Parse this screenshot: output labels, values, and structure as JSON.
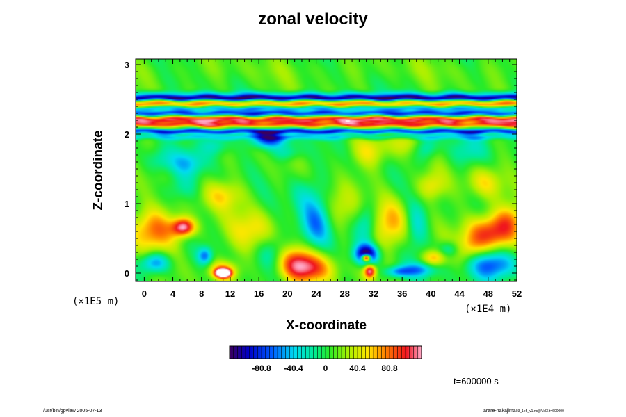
{
  "chart_data": {
    "type": "heatmap",
    "title": "zonal velocity",
    "xlabel": "X-coordinate",
    "ylabel": "Z-coordinate",
    "x_unit_label": "(×1E4 m)",
    "y_unit_label": "(×1E5 m)",
    "xlim": [
      -1.2,
      52
    ],
    "ylim": [
      -0.12,
      3.08
    ],
    "x_ticks": [
      0,
      4,
      8,
      12,
      16,
      20,
      24,
      28,
      32,
      36,
      40,
      44,
      48,
      52
    ],
    "x_tick_labels": [
      "0",
      "4",
      "8",
      "12",
      "16",
      "20",
      "24",
      "28",
      "32",
      "36",
      "40",
      "44",
      "48",
      "52"
    ],
    "y_ticks": [
      0,
      1,
      2,
      3
    ],
    "y_tick_labels": [
      "0",
      "1",
      "2",
      "3"
    ],
    "colorbar": {
      "range": [
        -121.2,
        121.2
      ],
      "tick_values": [
        -80.8,
        -40.4,
        0,
        40.4,
        80.8
      ],
      "tick_labels": [
        "-80.8",
        "-40.4",
        "0",
        "40.4",
        "80.8"
      ]
    },
    "time_label": "t=600000 s",
    "bands": [
      {
        "z": 2.92,
        "value": 5,
        "width": 0.16
      },
      {
        "z": 2.57,
        "value": -35,
        "width": 0.05
      },
      {
        "z": 2.52,
        "value": -110,
        "width": 0.04
      },
      {
        "z": 2.44,
        "value": 60,
        "width": 0.05
      },
      {
        "z": 2.37,
        "value": -55,
        "width": 0.035
      },
      {
        "z": 2.3,
        "value": -85,
        "width": 0.04
      },
      {
        "z": 2.21,
        "value": 95,
        "width": 0.045
      },
      {
        "z": 2.14,
        "value": 80,
        "width": 0.04
      },
      {
        "z": 2.04,
        "value": -90,
        "width": 0.035
      },
      {
        "z": 1.96,
        "value": -40,
        "width": 0.04
      }
    ],
    "features": [
      {
        "x": 11,
        "z": 0.0,
        "value": 180,
        "rx": 1.0,
        "rz": 0.06
      },
      {
        "x": 11,
        "z": 0.04,
        "value": 60,
        "rx": 2.0,
        "rz": 0.13
      },
      {
        "x": 8.5,
        "z": 0.25,
        "value": -65,
        "rx": 1.0,
        "rz": 0.12
      },
      {
        "x": 22.5,
        "z": 0.06,
        "value": 95,
        "rx": 3.5,
        "rz": 0.22
      },
      {
        "x": 21,
        "z": 0.22,
        "value": 40,
        "rx": 2.5,
        "rz": 0.2
      },
      {
        "x": 31,
        "z": 0.22,
        "value": 200,
        "rx": 0.6,
        "rz": 0.05
      },
      {
        "x": 31,
        "z": 0.27,
        "value": -130,
        "rx": 1.6,
        "rz": 0.14
      },
      {
        "x": 31.5,
        "z": 0.03,
        "value": 110,
        "rx": 0.8,
        "rz": 0.1
      },
      {
        "x": 35.5,
        "z": 0.02,
        "value": -65,
        "rx": 1.8,
        "rz": 0.08
      },
      {
        "x": 38.5,
        "z": 0.05,
        "value": -55,
        "rx": 2.2,
        "rz": 0.1
      },
      {
        "x": 40.5,
        "z": 0.22,
        "value": 60,
        "rx": 1.6,
        "rz": 0.12
      },
      {
        "x": 42.5,
        "z": 0.34,
        "value": -45,
        "rx": 1.5,
        "rz": 0.12
      },
      {
        "x": 48.5,
        "z": 0.12,
        "value": -85,
        "rx": 3.5,
        "rz": 0.22
      },
      {
        "x": 48.5,
        "z": 0.58,
        "value": 100,
        "rx": 3.5,
        "rz": 0.26
      },
      {
        "x": 51,
        "z": 0.78,
        "value": 35,
        "rx": 2.0,
        "rz": 0.22
      },
      {
        "x": 1.5,
        "z": 0.62,
        "value": 70,
        "rx": 3.5,
        "rz": 0.3
      },
      {
        "x": 5.5,
        "z": 0.66,
        "value": 110,
        "rx": 1.6,
        "rz": 0.13
      },
      {
        "x": 1.5,
        "z": 0.15,
        "value": -75,
        "rx": 2.0,
        "rz": 0.15
      },
      {
        "x": 24,
        "z": 0.7,
        "value": -70,
        "rx": 2.3,
        "rz": 0.38
      },
      {
        "x": 22.5,
        "z": 1.15,
        "value": -25,
        "rx": 2.5,
        "rz": 0.3
      },
      {
        "x": 27,
        "z": 0.9,
        "value": 40,
        "rx": 2.5,
        "rz": 0.35
      },
      {
        "x": 34.5,
        "z": 0.72,
        "value": 55,
        "rx": 2.5,
        "rz": 0.35
      },
      {
        "x": 31,
        "z": 0.72,
        "value": -45,
        "rx": 1.5,
        "rz": 0.3
      },
      {
        "x": 38,
        "z": 0.7,
        "value": -40,
        "rx": 1.6,
        "rz": 0.35
      },
      {
        "x": 15,
        "z": 0.62,
        "value": 45,
        "rx": 3.0,
        "rz": 0.3
      },
      {
        "x": 17.5,
        "z": 1.93,
        "value": -90,
        "rx": 2.6,
        "rz": 0.12
      },
      {
        "x": 20,
        "z": 1.74,
        "value": -35,
        "rx": 2.0,
        "rz": 0.12
      },
      {
        "x": 10,
        "z": 1.85,
        "value": -40,
        "rx": 2.0,
        "rz": 0.15
      },
      {
        "x": 6,
        "z": 1.58,
        "value": -45,
        "rx": 2.5,
        "rz": 0.18
      },
      {
        "x": 2,
        "z": 1.62,
        "value": -30,
        "rx": 2.0,
        "rz": 0.18
      },
      {
        "x": 31.5,
        "z": 1.75,
        "value": 40,
        "rx": 2.5,
        "rz": 0.22
      },
      {
        "x": 36.5,
        "z": 1.88,
        "value": 35,
        "rx": 2.0,
        "rz": 0.18
      },
      {
        "x": 39.5,
        "z": 1.82,
        "value": -45,
        "rx": 1.6,
        "rz": 0.18
      },
      {
        "x": 45,
        "z": 1.75,
        "value": -30,
        "rx": 2.5,
        "rz": 0.22
      },
      {
        "x": 47.5,
        "z": 1.3,
        "value": 40,
        "rx": 2.5,
        "rz": 0.22
      },
      {
        "x": 40,
        "z": 1.25,
        "value": 45,
        "rx": 2.0,
        "rz": 0.2
      },
      {
        "x": 11,
        "z": 1.12,
        "value": 40,
        "rx": 3.0,
        "rz": 0.2
      },
      {
        "x": 5,
        "z": 1.22,
        "value": -25,
        "rx": 2.5,
        "rz": 0.2
      },
      {
        "x": 45.5,
        "z": 0.35,
        "value": 35,
        "rx": 2.0,
        "rz": 0.2
      },
      {
        "x": 18,
        "z": 0.3,
        "value": -30,
        "rx": 2.0,
        "rz": 0.25
      }
    ]
  },
  "footer": {
    "left": "/usr/bin/gpview 2005-07-13",
    "right": "arare-nakajima",
    "right_small": "03_1e5_v1.nc@VelX,t=600000"
  }
}
